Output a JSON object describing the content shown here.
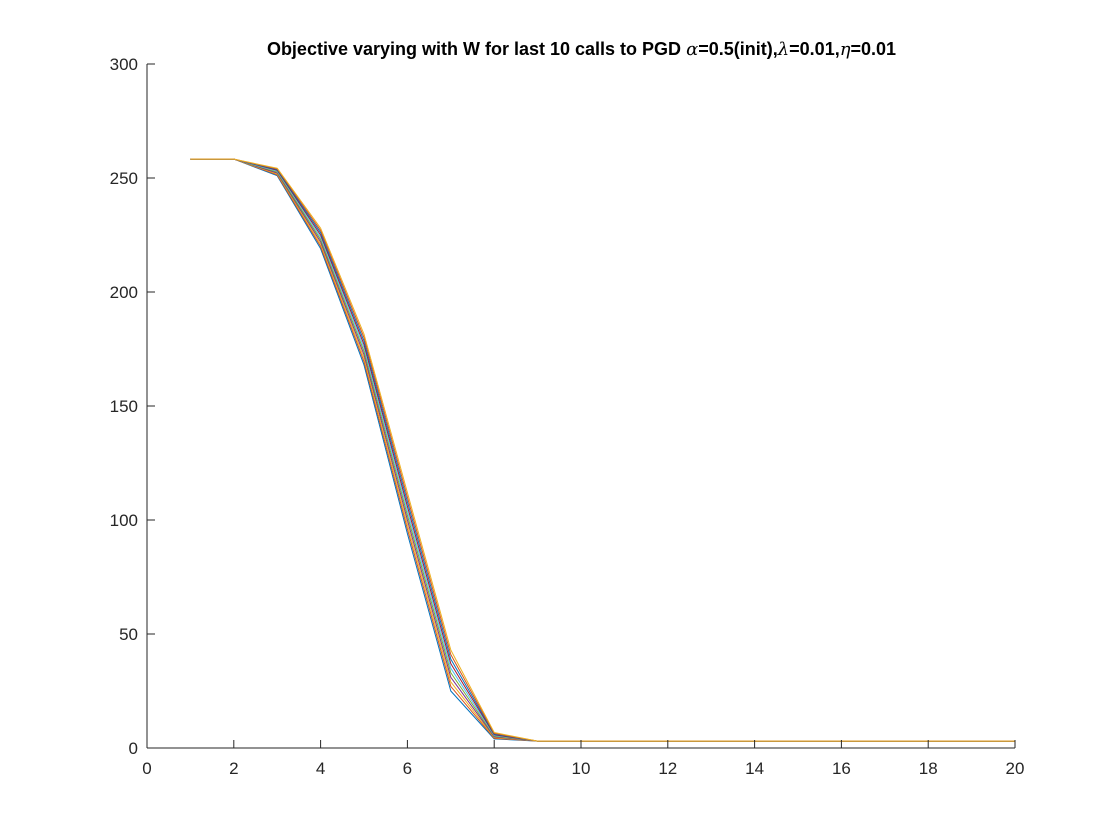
{
  "chart_data": {
    "type": "line",
    "title_parts": [
      {
        "text": "Objective varying with W for last 10 calls to PGD ",
        "greek": false
      },
      {
        "text": "α",
        "greek": true
      },
      {
        "text": "=0.5(init),",
        "greek": false
      },
      {
        "text": "λ",
        "greek": true
      },
      {
        "text": "=0.01,",
        "greek": false
      },
      {
        "text": "η",
        "greek": true
      },
      {
        "text": "=0.01",
        "greek": false
      }
    ],
    "xlabel": "",
    "ylabel": "",
    "xlim": [
      0,
      20
    ],
    "ylim": [
      0,
      300
    ],
    "xticks": [
      0,
      2,
      4,
      6,
      8,
      10,
      12,
      14,
      16,
      18,
      20
    ],
    "yticks": [
      0,
      50,
      100,
      150,
      200,
      250,
      300
    ],
    "grid": false,
    "legend": "none",
    "x": [
      1,
      2,
      3,
      4,
      5,
      6,
      7,
      8,
      9,
      10,
      11,
      12,
      13,
      14,
      15,
      16,
      17,
      18,
      19,
      20
    ],
    "series": [
      {
        "color": "#0072bd",
        "values": [
          258.3,
          258.3,
          251.0,
          219.0,
          168.0,
          94.0,
          25.0,
          4.0,
          3.0,
          3.0,
          3.0,
          3.0,
          3.0,
          3.0,
          3.0,
          3.0,
          3.0,
          3.0,
          3.0,
          3.0
        ]
      },
      {
        "color": "#d95319",
        "values": [
          258.3,
          258.3,
          251.4,
          220.0,
          169.5,
          96.0,
          27.0,
          4.3,
          3.0,
          3.0,
          3.0,
          3.0,
          3.0,
          3.0,
          3.0,
          3.0,
          3.0,
          3.0,
          3.0,
          3.0
        ]
      },
      {
        "color": "#edb120",
        "values": [
          258.3,
          258.3,
          251.8,
          221.0,
          171.0,
          98.0,
          29.0,
          4.6,
          3.0,
          3.0,
          3.0,
          3.0,
          3.0,
          3.0,
          3.0,
          3.0,
          3.0,
          3.0,
          3.0,
          3.0
        ]
      },
      {
        "color": "#7e2f8e",
        "values": [
          258.3,
          258.3,
          252.2,
          222.0,
          172.5,
          100.0,
          31.0,
          4.9,
          3.0,
          3.0,
          3.0,
          3.0,
          3.0,
          3.0,
          3.0,
          3.0,
          3.0,
          3.0,
          3.0,
          3.0
        ]
      },
      {
        "color": "#77ac30",
        "values": [
          258.3,
          258.3,
          252.6,
          223.0,
          174.0,
          102.0,
          33.0,
          5.2,
          3.0,
          3.0,
          3.0,
          3.0,
          3.0,
          3.0,
          3.0,
          3.0,
          3.0,
          3.0,
          3.0,
          3.0
        ]
      },
      {
        "color": "#4dbeee",
        "values": [
          258.3,
          258.3,
          253.0,
          224.0,
          175.5,
          104.0,
          35.0,
          5.5,
          3.0,
          3.0,
          3.0,
          3.0,
          3.0,
          3.0,
          3.0,
          3.0,
          3.0,
          3.0,
          3.0,
          3.0
        ]
      },
      {
        "color": "#a2142f",
        "values": [
          258.3,
          258.3,
          253.4,
          225.0,
          177.0,
          106.0,
          37.0,
          5.8,
          3.0,
          3.0,
          3.0,
          3.0,
          3.0,
          3.0,
          3.0,
          3.0,
          3.0,
          3.0,
          3.0,
          3.0
        ]
      },
      {
        "color": "#0072bd",
        "values": [
          258.3,
          258.3,
          253.7,
          226.0,
          178.5,
          108.0,
          39.0,
          6.1,
          3.0,
          3.0,
          3.0,
          3.0,
          3.0,
          3.0,
          3.0,
          3.0,
          3.0,
          3.0,
          3.0,
          3.0
        ]
      },
      {
        "color": "#d95319",
        "values": [
          258.3,
          258.3,
          254.0,
          227.0,
          180.0,
          110.0,
          41.0,
          6.4,
          3.0,
          3.0,
          3.0,
          3.0,
          3.0,
          3.0,
          3.0,
          3.0,
          3.0,
          3.0,
          3.0,
          3.0
        ]
      },
      {
        "color": "#edb120",
        "values": [
          258.3,
          258.3,
          254.3,
          228.0,
          181.5,
          112.0,
          43.0,
          6.8,
          3.0,
          3.0,
          3.0,
          3.0,
          3.0,
          3.0,
          3.0,
          3.0,
          3.0,
          3.0,
          3.0,
          3.0
        ]
      }
    ]
  }
}
